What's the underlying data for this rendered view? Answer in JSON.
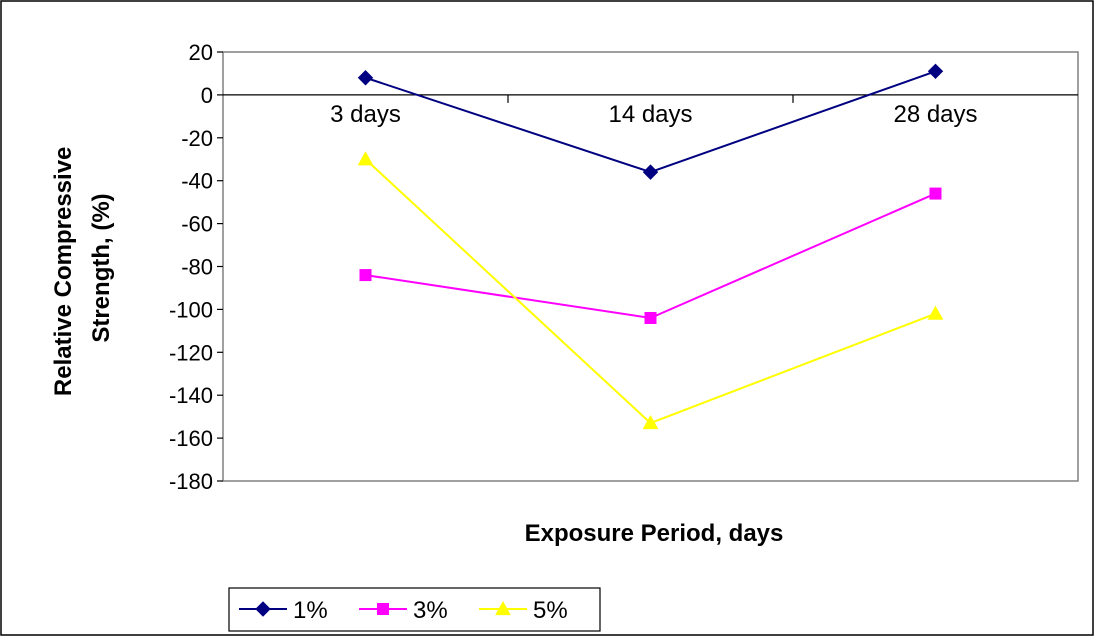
{
  "chart_data": {
    "type": "line",
    "title": "",
    "xlabel": "Exposure Period, days",
    "ylabel_lines": [
      "Relative Compressive",
      "Strength, (%)"
    ],
    "categories": [
      "3 days",
      "14 days",
      "28 days"
    ],
    "ylim": [
      -180,
      20
    ],
    "ystep": 20,
    "yticks": [
      "20",
      "0",
      "-20",
      "-40",
      "-60",
      "-80",
      "-100",
      "-120",
      "-140",
      "-160",
      "-180"
    ],
    "legend_position": "bottom-left",
    "grid": false,
    "series": [
      {
        "name": "1%",
        "values": [
          8,
          -36,
          11
        ],
        "color": "#000080",
        "marker": "diamond"
      },
      {
        "name": "3%",
        "values": [
          -84,
          -104,
          -46
        ],
        "color": "#FF00FF",
        "marker": "square"
      },
      {
        "name": "5%",
        "values": [
          -30,
          -153,
          -102
        ],
        "color": "#FFFF00",
        "marker": "triangle"
      }
    ]
  }
}
